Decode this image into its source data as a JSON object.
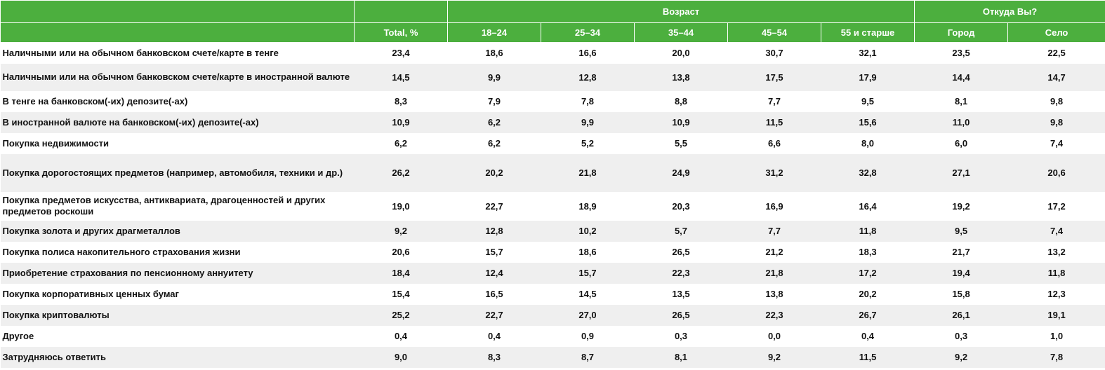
{
  "header": {
    "age_group": "Возраст",
    "origin_group": "Откуда Вы?",
    "columns": [
      "Total, %",
      "18–24",
      "25–34",
      "35–44",
      "45–54",
      "55 и старше",
      "Город",
      "Село"
    ]
  },
  "rows": [
    {
      "label": "Наличными или на обычном банковском счете/карте в тенге",
      "values": [
        "23,4",
        "18,6",
        "16,6",
        "20,0",
        "30,7",
        "32,1",
        "23,5",
        "22,5"
      ]
    },
    {
      "label": "Наличными или на обычном банковском счете/карте в иностранной валюте",
      "values": [
        "14,5",
        "9,9",
        "12,8",
        "13,8",
        "17,5",
        "17,9",
        "14,4",
        "14,7"
      ]
    },
    {
      "label": "В тенге на банковском(-их) депозите(-ах)",
      "values": [
        "8,3",
        "7,9",
        "7,8",
        "8,8",
        "7,7",
        "9,5",
        "8,1",
        "9,8"
      ]
    },
    {
      "label": "В иностранной валюте на банковском(-их) депозите(-ах)",
      "values": [
        "10,9",
        "6,2",
        "9,9",
        "10,9",
        "11,5",
        "15,6",
        "11,0",
        "9,8"
      ]
    },
    {
      "label": "Покупка недвижимости",
      "values": [
        "6,2",
        "6,2",
        "5,2",
        "5,5",
        "6,6",
        "8,0",
        "6,0",
        "7,4"
      ]
    },
    {
      "label": "Покупка дорогостоящих предметов (например, автомобиля, техники и др.)",
      "values": [
        "26,2",
        "20,2",
        "21,8",
        "24,9",
        "31,2",
        "32,8",
        "27,1",
        "20,6"
      ]
    },
    {
      "label": "Покупка предметов искусства, антиквариата, драгоценностей и других предметов роскоши",
      "values": [
        "19,0",
        "22,7",
        "18,9",
        "20,3",
        "16,9",
        "16,4",
        "19,2",
        "17,2"
      ]
    },
    {
      "label": "Покупка золота и других драгметаллов",
      "values": [
        "9,2",
        "12,8",
        "10,2",
        "5,7",
        "7,7",
        "11,8",
        "9,5",
        "7,4"
      ]
    },
    {
      "label": "Покупка полиса накопительного страхования жизни",
      "values": [
        "20,6",
        "15,7",
        "18,6",
        "26,5",
        "21,2",
        "18,3",
        "21,7",
        "13,2"
      ]
    },
    {
      "label": "Приобретение страхования по пенсионному аннуитету",
      "values": [
        "18,4",
        "12,4",
        "15,7",
        "22,3",
        "21,8",
        "17,2",
        "19,4",
        "11,8"
      ]
    },
    {
      "label": "Покупка корпоративных ценных бумаг",
      "values": [
        "15,4",
        "16,5",
        "14,5",
        "13,5",
        "13,8",
        "20,2",
        "15,8",
        "12,3"
      ]
    },
    {
      "label": "Покупка криптовалюты",
      "values": [
        "25,2",
        "22,7",
        "27,0",
        "26,5",
        "22,3",
        "26,7",
        "26,1",
        "19,1"
      ]
    },
    {
      "label": "Другое",
      "values": [
        "0,4",
        "0,4",
        "0,9",
        "0,3",
        "0,0",
        "0,4",
        "0,3",
        "1,0"
      ]
    },
    {
      "label": "Затрудняюсь ответить",
      "values": [
        "9,0",
        "8,3",
        "8,7",
        "8,1",
        "9,2",
        "11,5",
        "9,2",
        "7,8"
      ]
    }
  ]
}
